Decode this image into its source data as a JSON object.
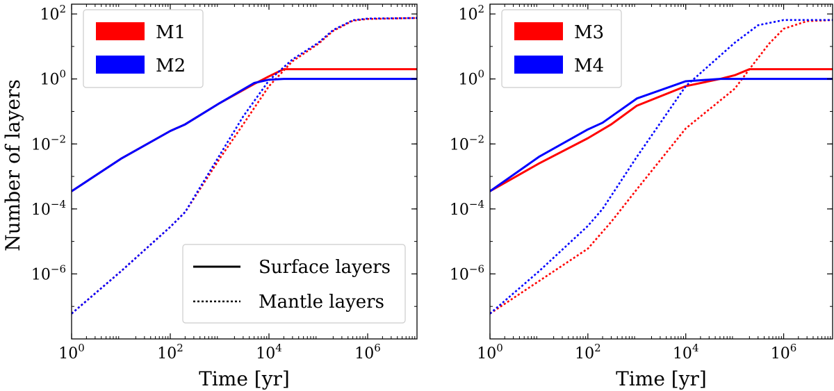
{
  "figure": {
    "ylabel": "Number of layers",
    "linestyle_legend": [
      {
        "label": "Surface layers",
        "style": "solid"
      },
      {
        "label": "Mantle layers",
        "style": "dotted"
      }
    ]
  },
  "chart_data": [
    {
      "type": "line",
      "xscale": "log",
      "yscale": "log",
      "xlabel": "Time [yr]",
      "xlim": [
        1,
        10000000
      ],
      "ylim": [
        1e-08,
        200
      ],
      "xticks": [
        {
          "exp": "0",
          "value": 1
        },
        {
          "exp": "2",
          "value": 100
        },
        {
          "exp": "4",
          "value": 10000
        },
        {
          "exp": "6",
          "value": 1000000
        }
      ],
      "yticks": [
        {
          "exp": "−6",
          "value": 1e-06
        },
        {
          "exp": "−4",
          "value": 0.0001
        },
        {
          "exp": "−2",
          "value": 0.01
        },
        {
          "exp": "0",
          "value": 1
        },
        {
          "exp": "2",
          "value": 100
        }
      ],
      "legend": [
        {
          "label": "M1",
          "color": "#ff0000"
        },
        {
          "label": "M2",
          "color": "#0000ff"
        }
      ],
      "series": [
        {
          "name": "M1 surface",
          "color": "#ff0000",
          "style": "solid",
          "x": [
            1,
            10,
            100,
            200,
            1000,
            5000,
            10000,
            20000,
            10000000
          ],
          "y": [
            0.00035,
            0.0035,
            0.025,
            0.04,
            0.18,
            0.7,
            1.2,
            2.0,
            2.0
          ]
        },
        {
          "name": "M1 mantle",
          "color": "#ff0000",
          "style": "dotted",
          "x": [
            1,
            10,
            100,
            200,
            1000,
            3000,
            10000,
            30000,
            100000,
            200000,
            500000,
            1000000,
            10000000
          ],
          "y": [
            6e-08,
            1.2e-06,
            2.8e-05,
            8e-05,
            0.0035,
            0.04,
            0.6,
            3.5,
            12,
            30,
            62,
            70,
            75
          ]
        },
        {
          "name": "M2 surface",
          "color": "#0000ff",
          "style": "solid",
          "x": [
            1,
            10,
            100,
            200,
            1000,
            5000,
            10000,
            20000,
            10000000
          ],
          "y": [
            0.00035,
            0.0035,
            0.025,
            0.04,
            0.18,
            0.75,
            0.95,
            1.0,
            1.0
          ]
        },
        {
          "name": "M2 mantle",
          "color": "#0000ff",
          "style": "dotted",
          "x": [
            1,
            10,
            100,
            200,
            1000,
            3000,
            10000,
            30000,
            100000,
            200000,
            500000,
            1000000,
            10000000
          ],
          "y": [
            6e-08,
            1.2e-06,
            2.8e-05,
            8e-05,
            0.0045,
            0.07,
            0.9,
            4,
            13,
            32,
            64,
            72,
            75
          ]
        }
      ]
    },
    {
      "type": "line",
      "xscale": "log",
      "yscale": "log",
      "xlabel": "Time [yr]",
      "xlim": [
        1,
        10000000
      ],
      "ylim": [
        1e-08,
        200
      ],
      "xticks": [
        {
          "exp": "0",
          "value": 1
        },
        {
          "exp": "2",
          "value": 100
        },
        {
          "exp": "4",
          "value": 10000
        },
        {
          "exp": "6",
          "value": 1000000
        }
      ],
      "yticks": [
        {
          "exp": "−6",
          "value": 1e-06
        },
        {
          "exp": "−4",
          "value": 0.0001
        },
        {
          "exp": "−2",
          "value": 0.01
        },
        {
          "exp": "0",
          "value": 1
        },
        {
          "exp": "2",
          "value": 100
        }
      ],
      "legend": [
        {
          "label": "M3",
          "color": "#ff0000"
        },
        {
          "label": "M4",
          "color": "#0000ff"
        }
      ],
      "series": [
        {
          "name": "M3 surface",
          "color": "#ff0000",
          "style": "solid",
          "x": [
            1,
            10,
            100,
            300,
            1000,
            10000,
            50000,
            100000,
            200000,
            10000000
          ],
          "y": [
            0.00035,
            0.0025,
            0.015,
            0.04,
            0.15,
            0.6,
            1.0,
            1.3,
            2.0,
            2.0
          ]
        },
        {
          "name": "M3 mantle",
          "color": "#ff0000",
          "style": "dotted",
          "x": [
            1,
            10,
            100,
            300,
            1000,
            10000,
            100000,
            200000,
            500000,
            1000000,
            3000000,
            10000000
          ],
          "y": [
            6e-08,
            6e-07,
            6e-06,
            4e-05,
            0.0004,
            0.03,
            0.5,
            2.0,
            12,
            35,
            60,
            65
          ]
        },
        {
          "name": "M4 surface",
          "color": "#0000ff",
          "style": "solid",
          "x": [
            1,
            10,
            100,
            200,
            1000,
            10000,
            50000,
            10000000
          ],
          "y": [
            0.00035,
            0.004,
            0.028,
            0.045,
            0.25,
            0.85,
            1.0,
            1.0
          ]
        },
        {
          "name": "M4 mantle",
          "color": "#0000ff",
          "style": "dotted",
          "x": [
            1,
            10,
            100,
            200,
            1000,
            10000,
            100000,
            300000,
            1000000,
            10000000
          ],
          "y": [
            6e-08,
            1.2e-06,
            3e-05,
            0.0001,
            0.004,
            0.6,
            13,
            45,
            65,
            65
          ]
        }
      ]
    }
  ]
}
